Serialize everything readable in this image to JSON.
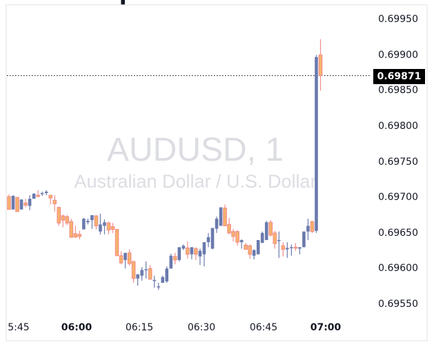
{
  "symbol": {
    "title": "AUDUSD, 1",
    "description": "Australian Dollar / U.S. Dollar"
  },
  "price_line": {
    "value": "0.69871",
    "label_bg": "#000000",
    "label_fg": "#ffffff"
  },
  "colors": {
    "up_body": "#6a7aad",
    "up_wick": "#6a7aad",
    "down_body": "#f6b26b",
    "down_border": "#f28b8b",
    "down_wick": "#f28b8b",
    "watermark": "#dcdde2",
    "axis_text": "#131722"
  },
  "y_axis": {
    "ticks": [
      "0.69950",
      "0.69900",
      "0.69850",
      "0.69800",
      "0.69750",
      "0.69700",
      "0.69650",
      "0.69600",
      "0.69550"
    ]
  },
  "x_axis": {
    "ticks": [
      {
        "label": "5:45",
        "bold": false
      },
      {
        "label": "06:00",
        "bold": true
      },
      {
        "label": "06:15",
        "bold": false
      },
      {
        "label": "06:30",
        "bold": false
      },
      {
        "label": "06:45",
        "bold": false
      },
      {
        "label": "07:00",
        "bold": true
      }
    ]
  },
  "chart_data": {
    "type": "candlestick",
    "title": "AUDUSD, 1",
    "subtitle": "Australian Dollar / U.S. Dollar",
    "xlabel": "",
    "ylabel": "",
    "ylim": [
      0.6952,
      0.6998
    ],
    "x_tick_labels": [
      "5:45",
      "06:00",
      "06:15",
      "06:30",
      "06:45",
      "07:00"
    ],
    "y_tick_labels": [
      "0.69950",
      "0.69900",
      "0.69850",
      "0.69800",
      "0.69750",
      "0.69700",
      "0.69650",
      "0.69600",
      "0.69550"
    ],
    "last_price": 0.69871,
    "interval": "1 minute",
    "first_time": "05:43",
    "candles": [
      {
        "o": 0.69701,
        "h": 0.69704,
        "l": 0.69683,
        "c": 0.69683
      },
      {
        "o": 0.69683,
        "h": 0.69703,
        "l": 0.69683,
        "c": 0.69702
      },
      {
        "o": 0.697,
        "h": 0.697,
        "l": 0.6968,
        "c": 0.6968
      },
      {
        "o": 0.69683,
        "h": 0.69697,
        "l": 0.69683,
        "c": 0.69697
      },
      {
        "o": 0.69692,
        "h": 0.69698,
        "l": 0.69686,
        "c": 0.69689
      },
      {
        "o": 0.69688,
        "h": 0.69703,
        "l": 0.69682,
        "c": 0.69698
      },
      {
        "o": 0.69698,
        "h": 0.69706,
        "l": 0.69698,
        "c": 0.69705
      },
      {
        "o": 0.69703,
        "h": 0.6971,
        "l": 0.69702,
        "c": 0.69701
      },
      {
        "o": 0.69705,
        "h": 0.69708,
        "l": 0.69702,
        "c": 0.69706
      },
      {
        "o": 0.69706,
        "h": 0.6971,
        "l": 0.69703,
        "c": 0.69708
      },
      {
        "o": 0.69703,
        "h": 0.69703,
        "l": 0.6969,
        "c": 0.69699
      },
      {
        "o": 0.69696,
        "h": 0.69703,
        "l": 0.6968,
        "c": 0.69691
      },
      {
        "o": 0.69686,
        "h": 0.69686,
        "l": 0.6966,
        "c": 0.69664
      },
      {
        "o": 0.69674,
        "h": 0.69676,
        "l": 0.69658,
        "c": 0.69668
      },
      {
        "o": 0.69673,
        "h": 0.69675,
        "l": 0.69661,
        "c": 0.69664
      },
      {
        "o": 0.69666,
        "h": 0.6967,
        "l": 0.69643,
        "c": 0.69644
      },
      {
        "o": 0.69649,
        "h": 0.6966,
        "l": 0.69647,
        "c": 0.69644
      },
      {
        "o": 0.69648,
        "h": 0.69653,
        "l": 0.69641,
        "c": 0.69645
      },
      {
        "o": 0.69655,
        "h": 0.69671,
        "l": 0.69655,
        "c": 0.6967
      },
      {
        "o": 0.69665,
        "h": 0.6967,
        "l": 0.69662,
        "c": 0.69667
      },
      {
        "o": 0.69668,
        "h": 0.69673,
        "l": 0.69656,
        "c": 0.69675
      },
      {
        "o": 0.69674,
        "h": 0.69675,
        "l": 0.69655,
        "c": 0.6966
      },
      {
        "o": 0.69652,
        "h": 0.69677,
        "l": 0.69648,
        "c": 0.69662
      },
      {
        "o": 0.6966,
        "h": 0.69669,
        "l": 0.69648,
        "c": 0.69665
      },
      {
        "o": 0.69664,
        "h": 0.69666,
        "l": 0.69648,
        "c": 0.69654
      },
      {
        "o": 0.69659,
        "h": 0.69664,
        "l": 0.6965,
        "c": 0.69655
      },
      {
        "o": 0.69655,
        "h": 0.69655,
        "l": 0.69618,
        "c": 0.69618
      },
      {
        "o": 0.69618,
        "h": 0.69624,
        "l": 0.69606,
        "c": 0.69608
      },
      {
        "o": 0.69612,
        "h": 0.69622,
        "l": 0.696,
        "c": 0.69622
      },
      {
        "o": 0.69622,
        "h": 0.69627,
        "l": 0.69604,
        "c": 0.69607
      },
      {
        "o": 0.6961,
        "h": 0.6961,
        "l": 0.6958,
        "c": 0.69586
      },
      {
        "o": 0.69586,
        "h": 0.69591,
        "l": 0.69576,
        "c": 0.69592
      },
      {
        "o": 0.6959,
        "h": 0.69602,
        "l": 0.69583,
        "c": 0.69598
      },
      {
        "o": 0.69598,
        "h": 0.6961,
        "l": 0.69586,
        "c": 0.69599
      },
      {
        "o": 0.696,
        "h": 0.69605,
        "l": 0.6959,
        "c": 0.69585
      },
      {
        "o": 0.69584,
        "h": 0.6959,
        "l": 0.69573,
        "c": 0.69584
      },
      {
        "o": 0.69575,
        "h": 0.6958,
        "l": 0.6957,
        "c": 0.69575
      },
      {
        "o": 0.6958,
        "h": 0.6959,
        "l": 0.6958,
        "c": 0.69588
      },
      {
        "o": 0.69582,
        "h": 0.69603,
        "l": 0.6958,
        "c": 0.696
      },
      {
        "o": 0.696,
        "h": 0.69621,
        "l": 0.696,
        "c": 0.69618
      },
      {
        "o": 0.69617,
        "h": 0.69622,
        "l": 0.69606,
        "c": 0.69612
      },
      {
        "o": 0.69612,
        "h": 0.6963,
        "l": 0.6961,
        "c": 0.6963
      },
      {
        "o": 0.69628,
        "h": 0.69634,
        "l": 0.69626,
        "c": 0.69632
      },
      {
        "o": 0.69629,
        "h": 0.69638,
        "l": 0.69614,
        "c": 0.6962
      },
      {
        "o": 0.6962,
        "h": 0.6962,
        "l": 0.69613,
        "c": 0.6963
      },
      {
        "o": 0.69628,
        "h": 0.6963,
        "l": 0.69612,
        "c": 0.6962
      },
      {
        "o": 0.69617,
        "h": 0.69628,
        "l": 0.69605,
        "c": 0.69625
      },
      {
        "o": 0.6962,
        "h": 0.69637,
        "l": 0.69603,
        "c": 0.69637
      },
      {
        "o": 0.69637,
        "h": 0.6965,
        "l": 0.6963,
        "c": 0.69644
      },
      {
        "o": 0.69628,
        "h": 0.69646,
        "l": 0.69627,
        "c": 0.69657
      },
      {
        "o": 0.69656,
        "h": 0.69673,
        "l": 0.6965,
        "c": 0.6967
      },
      {
        "o": 0.6966,
        "h": 0.69675,
        "l": 0.6966,
        "c": 0.69686
      },
      {
        "o": 0.69685,
        "h": 0.6969,
        "l": 0.6966,
        "c": 0.6966
      },
      {
        "o": 0.69662,
        "h": 0.69671,
        "l": 0.69648,
        "c": 0.6965
      },
      {
        "o": 0.69652,
        "h": 0.69656,
        "l": 0.69638,
        "c": 0.69645
      },
      {
        "o": 0.69652,
        "h": 0.69654,
        "l": 0.69632,
        "c": 0.69637
      },
      {
        "o": 0.69637,
        "h": 0.69641,
        "l": 0.69628,
        "c": 0.6964
      },
      {
        "o": 0.69633,
        "h": 0.69636,
        "l": 0.69627,
        "c": 0.69627
      },
      {
        "o": 0.69632,
        "h": 0.69634,
        "l": 0.69614,
        "c": 0.6962
      },
      {
        "o": 0.69618,
        "h": 0.69627,
        "l": 0.69613,
        "c": 0.69626
      },
      {
        "o": 0.6962,
        "h": 0.6964,
        "l": 0.6962,
        "c": 0.6964
      },
      {
        "o": 0.69636,
        "h": 0.69652,
        "l": 0.69636,
        "c": 0.6965
      },
      {
        "o": 0.6964,
        "h": 0.69667,
        "l": 0.6964,
        "c": 0.69665
      },
      {
        "o": 0.69665,
        "h": 0.69668,
        "l": 0.69645,
        "c": 0.69647
      },
      {
        "o": 0.6965,
        "h": 0.69653,
        "l": 0.69628,
        "c": 0.69635
      },
      {
        "o": 0.6964,
        "h": 0.69652,
        "l": 0.69615,
        "c": 0.6964
      },
      {
        "o": 0.69632,
        "h": 0.69637,
        "l": 0.69617,
        "c": 0.69627
      },
      {
        "o": 0.69627,
        "h": 0.69637,
        "l": 0.69615,
        "c": 0.69629
      },
      {
        "o": 0.6963,
        "h": 0.69634,
        "l": 0.69618,
        "c": 0.6963
      },
      {
        "o": 0.6963,
        "h": 0.69636,
        "l": 0.69625,
        "c": 0.69629
      },
      {
        "o": 0.69628,
        "h": 0.6963,
        "l": 0.6962,
        "c": 0.6963
      },
      {
        "o": 0.6963,
        "h": 0.6965,
        "l": 0.6963,
        "c": 0.69652
      },
      {
        "o": 0.69652,
        "h": 0.6967,
        "l": 0.6964,
        "c": 0.6966
      },
      {
        "o": 0.69666,
        "h": 0.69667,
        "l": 0.6965,
        "c": 0.69652
      },
      {
        "o": 0.69653,
        "h": 0.699,
        "l": 0.6965,
        "c": 0.69897
      },
      {
        "o": 0.699,
        "h": 0.69922,
        "l": 0.6985,
        "c": 0.69871
      }
    ]
  }
}
